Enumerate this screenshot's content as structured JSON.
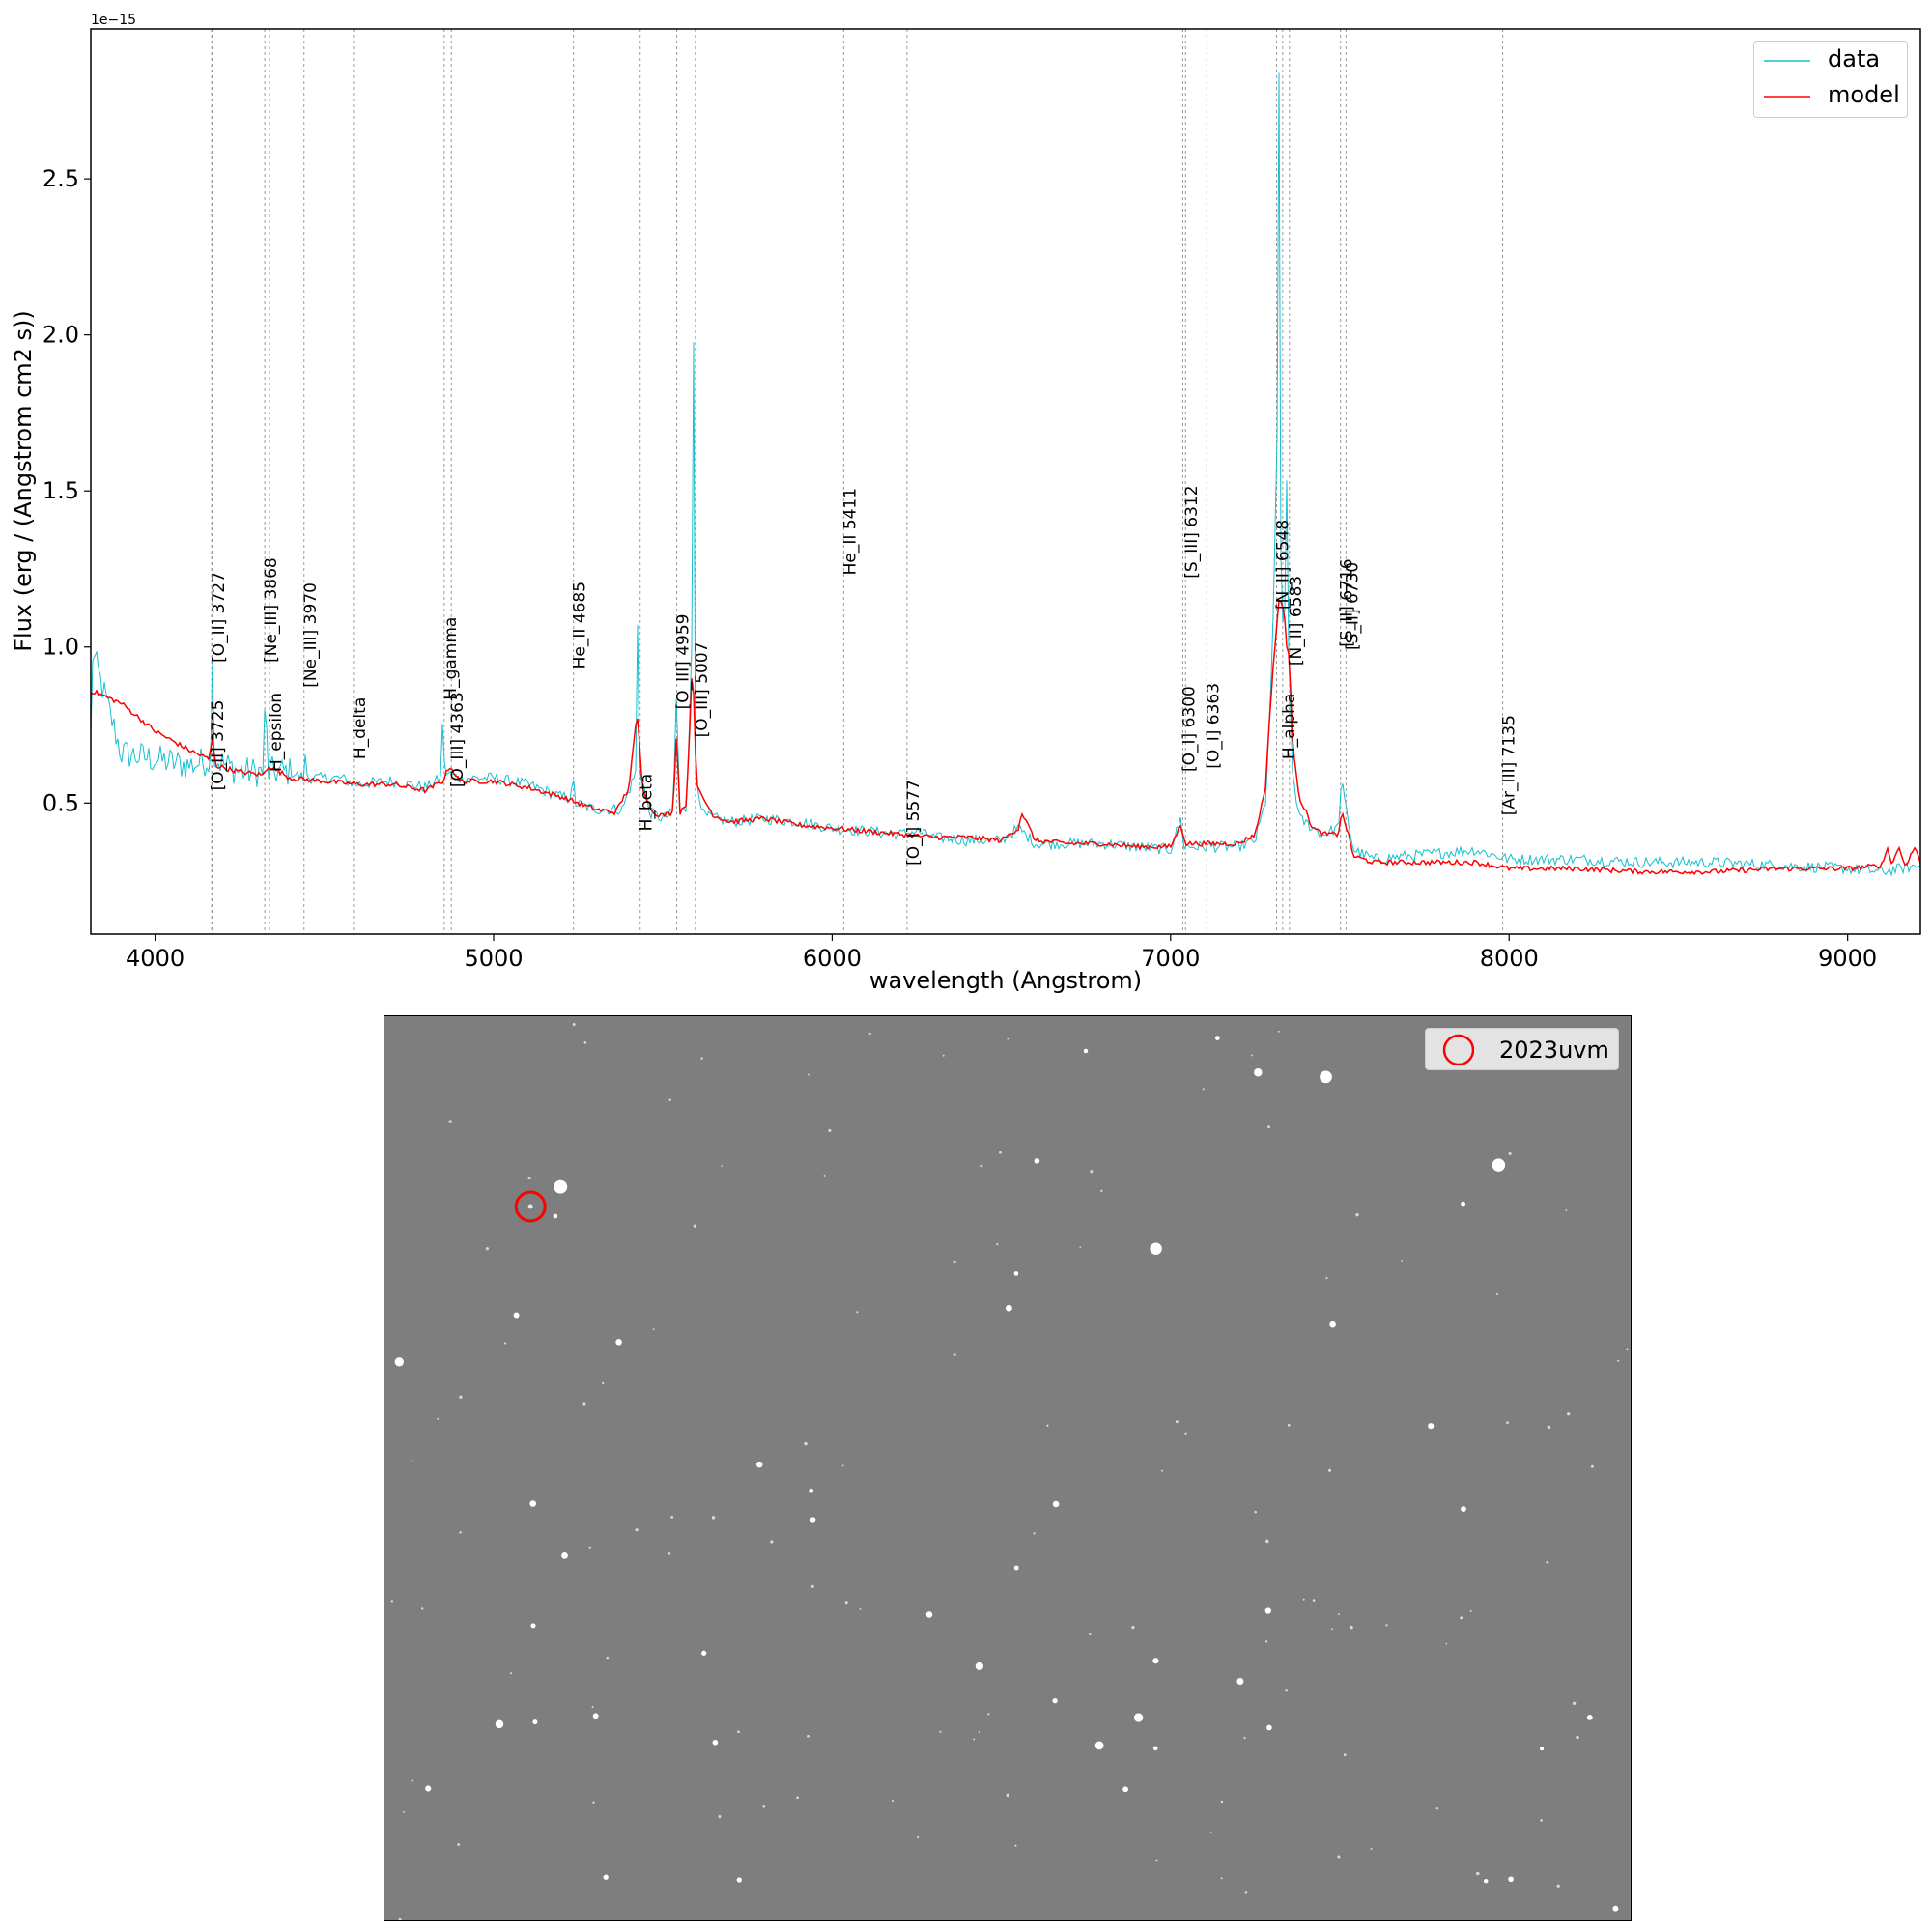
{
  "chart_data": [
    {
      "type": "line",
      "title": "",
      "exponent_label": "1e−15",
      "xlabel": "wavelength (Angstrom)",
      "ylabel": "Flux (erg / (Angstrom cm2 s))",
      "xlim": [
        3810,
        9215
      ],
      "ylim": [
        0.08,
        2.98
      ],
      "xticks": [
        4000,
        5000,
        6000,
        7000,
        8000,
        9000
      ],
      "yticks": [
        0.5,
        1.0,
        1.5,
        2.0,
        2.5
      ],
      "xtick_labels": [
        "4000",
        "5000",
        "6000",
        "7000",
        "8000",
        "9000"
      ],
      "ytick_labels": [
        "0.5",
        "1.0",
        "1.5",
        "2.0",
        "2.5"
      ],
      "grid": false,
      "legend_position": "top-right",
      "series": [
        {
          "name": "data",
          "color": "#17becf",
          "x": [
            3810,
            3815,
            3900,
            4000,
            4100,
            4165,
            4168,
            4175,
            4250,
            4320,
            4325,
            4335,
            4400,
            4440,
            4445,
            4450,
            4550,
            4590,
            4700,
            4800,
            4845,
            4850,
            4855,
            4900,
            5000,
            5100,
            5200,
            5230,
            5235,
            5240,
            5300,
            5380,
            5420,
            5424,
            5430,
            5460,
            5500,
            5530,
            5540,
            5550,
            5570,
            5585,
            5590,
            5595,
            5620,
            5700,
            5800,
            5900,
            6000,
            6100,
            6200,
            6250,
            6300,
            6400,
            6500,
            6550,
            6600,
            6700,
            6800,
            6900,
            7000,
            7030,
            7040,
            7100,
            7200,
            7250,
            7280,
            7300,
            7315,
            7320,
            7325,
            7335,
            7345,
            7348,
            7360,
            7380,
            7450,
            7495,
            7505,
            7515,
            7540,
            7600,
            7800,
            7900,
            8000,
            8200,
            8400,
            8600,
            8800,
            9000,
            9100,
            9215
          ],
          "y": [
            0.7,
            0.98,
            0.66,
            0.64,
            0.62,
            0.64,
            1.12,
            0.64,
            0.6,
            0.6,
            0.83,
            0.6,
            0.6,
            0.58,
            0.67,
            0.58,
            0.58,
            0.56,
            0.57,
            0.55,
            0.58,
            0.82,
            0.6,
            0.58,
            0.58,
            0.56,
            0.52,
            0.52,
            0.6,
            0.5,
            0.48,
            0.48,
            0.6,
            1.18,
            0.62,
            0.47,
            0.45,
            0.47,
            0.85,
            0.47,
            0.48,
            1.0,
            2.2,
            0.6,
            0.46,
            0.44,
            0.45,
            0.44,
            0.42,
            0.41,
            0.4,
            0.41,
            0.39,
            0.38,
            0.38,
            0.42,
            0.37,
            0.37,
            0.37,
            0.36,
            0.35,
            0.45,
            0.36,
            0.36,
            0.36,
            0.38,
            0.5,
            0.95,
            1.7,
            2.86,
            1.3,
            0.95,
            1.7,
            1.0,
            0.6,
            0.45,
            0.4,
            0.42,
            0.57,
            0.5,
            0.35,
            0.32,
            0.34,
            0.35,
            0.32,
            0.32,
            0.31,
            0.31,
            0.3,
            0.29,
            0.28,
            0.3
          ]
        },
        {
          "name": "model",
          "color": "#ff0000",
          "x": [
            3810,
            3900,
            4000,
            4100,
            4160,
            4168,
            4180,
            4250,
            4320,
            4335,
            4400,
            4500,
            4600,
            4700,
            4800,
            4850,
            4870,
            4900,
            5000,
            5100,
            5200,
            5300,
            5360,
            5400,
            5424,
            5440,
            5470,
            5500,
            5530,
            5540,
            5550,
            5570,
            5585,
            5590,
            5600,
            5650,
            5700,
            5800,
            5900,
            6000,
            6100,
            6200,
            6300,
            6400,
            6500,
            6550,
            6560,
            6600,
            6700,
            6800,
            6900,
            7000,
            7030,
            7045,
            7100,
            7200,
            7250,
            7280,
            7300,
            7320,
            7335,
            7345,
            7350,
            7360,
            7380,
            7420,
            7450,
            7495,
            7505,
            7520,
            7540,
            7600,
            7800,
            7900,
            8000,
            8200,
            8400,
            8600,
            8800,
            9000,
            9100,
            9120,
            9130,
            9150,
            9170,
            9200,
            9215
          ],
          "y": [
            0.86,
            0.82,
            0.73,
            0.67,
            0.64,
            0.71,
            0.62,
            0.6,
            0.59,
            0.62,
            0.58,
            0.57,
            0.56,
            0.56,
            0.54,
            0.57,
            0.62,
            0.57,
            0.57,
            0.55,
            0.52,
            0.48,
            0.47,
            0.55,
            0.79,
            0.55,
            0.47,
            0.46,
            0.47,
            0.73,
            0.47,
            0.5,
            0.9,
            0.88,
            0.55,
            0.46,
            0.44,
            0.45,
            0.43,
            0.42,
            0.41,
            0.4,
            0.39,
            0.39,
            0.38,
            0.42,
            0.47,
            0.38,
            0.37,
            0.37,
            0.36,
            0.36,
            0.43,
            0.37,
            0.37,
            0.37,
            0.4,
            0.55,
            0.9,
            1.15,
            1.12,
            0.98,
            0.98,
            0.7,
            0.52,
            0.42,
            0.4,
            0.4,
            0.47,
            0.42,
            0.33,
            0.31,
            0.31,
            0.31,
            0.29,
            0.29,
            0.28,
            0.28,
            0.29,
            0.29,
            0.3,
            0.36,
            0.3,
            0.36,
            0.3,
            0.36,
            0.31
          ]
        }
      ],
      "lines": [
        {
          "x": 4167,
          "label": "[O_II] 3725",
          "label_y": 0.54
        },
        {
          "x": 4169,
          "label": "[O_II] 3727",
          "label_y": 0.95
        },
        {
          "x": 4324,
          "label": "[Ne_III] 3868",
          "label_y": 0.95
        },
        {
          "x": 4338,
          "label": "H_epsilon",
          "label_y": 0.6
        },
        {
          "x": 4440,
          "label": "[Ne_III] 3970",
          "label_y": 0.87
        },
        {
          "x": 4586,
          "label": "H_delta",
          "label_y": 0.64
        },
        {
          "x": 4854,
          "label": "H_gamma",
          "label_y": 0.83
        },
        {
          "x": 4875,
          "label": "[O_III] 4363",
          "label_y": 0.55
        },
        {
          "x": 5236,
          "label": "He_II 4685",
          "label_y": 0.93
        },
        {
          "x": 5433,
          "label": "H_beta",
          "label_y": 0.41
        },
        {
          "x": 5541,
          "label": "[O_III] 4959",
          "label_y": 0.8
        },
        {
          "x": 5596,
          "label": "[O_III] 5007",
          "label_y": 0.71
        },
        {
          "x": 6034,
          "label": "He_II 5411",
          "label_y": 1.23
        },
        {
          "x": 6221,
          "label": "[O_I] 5577",
          "label_y": 0.3
        },
        {
          "x": 7036,
          "label": "[O_I] 6300",
          "label_y": 0.6
        },
        {
          "x": 7044,
          "label": "[S_III] 6312",
          "label_y": 1.22
        },
        {
          "x": 7107,
          "label": "[O_I] 6363",
          "label_y": 0.61
        },
        {
          "x": 7313,
          "label": "[N_II] 6548",
          "label_y": 1.12
        },
        {
          "x": 7331,
          "label": "H_alpha",
          "label_y": 0.64
        },
        {
          "x": 7351,
          "label": "[N_II] 6583",
          "label_y": 0.94
        },
        {
          "x": 7502,
          "label": "[S_II] 6716",
          "label_y": 1.0
        },
        {
          "x": 7518,
          "label": "[S_II] 6730",
          "label_y": 0.99
        },
        {
          "x": 7981,
          "label": "[Ar_III] 7135",
          "label_y": 0.46
        }
      ]
    },
    {
      "type": "image",
      "title": "",
      "legend": [
        {
          "name": "2023uvm",
          "marker": "circle",
          "color": "#ff0000"
        }
      ],
      "target": {
        "name": "2023uvm",
        "x_frac": 0.117,
        "y_frac": 0.21
      }
    }
  ]
}
